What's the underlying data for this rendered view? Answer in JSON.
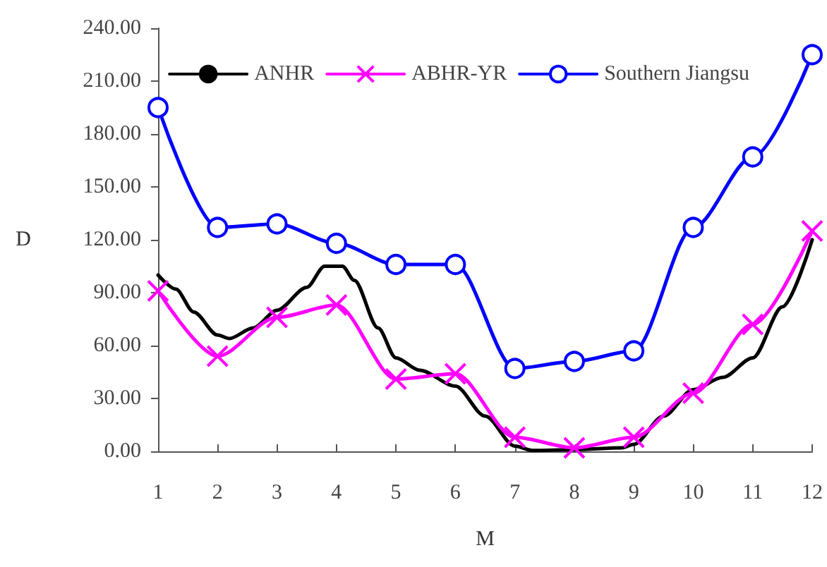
{
  "chart_data": {
    "type": "line",
    "xlabel": "M",
    "ylabel": "D",
    "xlim": [
      1,
      12
    ],
    "xticks": [
      1,
      2,
      3,
      4,
      5,
      6,
      7,
      8,
      9,
      10,
      11,
      12
    ],
    "ylim": [
      0,
      240
    ],
    "yticks": [
      {
        "value": 0,
        "label": "0.00"
      },
      {
        "value": 30,
        "label": "30.00"
      },
      {
        "value": 60,
        "label": "60.00"
      },
      {
        "value": 90,
        "label": "90.00"
      },
      {
        "value": 120,
        "label": "120.00"
      },
      {
        "value": 150,
        "label": "150.00"
      },
      {
        "value": 180,
        "label": "180.00"
      },
      {
        "value": 210,
        "label": "210.00"
      },
      {
        "value": 240,
        "label": "240.00"
      }
    ],
    "grid": false,
    "legend": "top right",
    "line_style": "solid",
    "series": [
      {
        "name": "ANHR",
        "color": "#000000",
        "marker": "none",
        "x": [
          1,
          1.3,
          1.6,
          2,
          2.2,
          2.6,
          3,
          3.5,
          3.8,
          4.1,
          4.3,
          4.7,
          5,
          5.4,
          6,
          6.5,
          7,
          7.3,
          8,
          8.8,
          9,
          9.5,
          10,
          10.5,
          11,
          11.5,
          12
        ],
        "values": [
          100,
          92,
          79,
          66,
          64,
          70,
          80,
          93,
          105,
          105,
          97,
          70,
          53,
          46,
          37,
          20,
          3,
          0.5,
          1,
          2,
          4,
          20,
          35,
          42,
          53,
          82,
          120
        ]
      },
      {
        "name": "ABHR-YR",
        "color": "#ff00ff",
        "marker": "cross",
        "x": [
          1,
          2,
          3,
          4,
          5,
          6,
          7,
          8,
          9,
          10,
          11,
          12
        ],
        "values": [
          91,
          54,
          76,
          83,
          41,
          44,
          8,
          2,
          8,
          33,
          72,
          125
        ]
      },
      {
        "name": "Southern Jiangsu",
        "color": "#0000ff",
        "marker": "circle",
        "x": [
          1,
          2,
          3,
          4,
          5,
          6,
          7,
          8,
          9,
          10,
          11,
          12
        ],
        "values": [
          195,
          127,
          129,
          118,
          106,
          106,
          47,
          51,
          57,
          127,
          167,
          225
        ]
      }
    ]
  }
}
